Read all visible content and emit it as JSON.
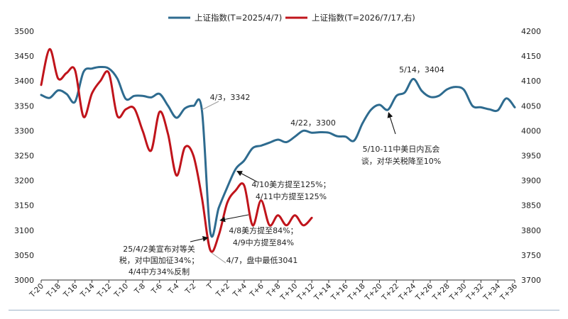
{
  "chart_data": {
    "type": "line",
    "series": [
      {
        "name": "上证指数(T=2025/4/7)",
        "axis": "left",
        "color": "#2e6b8f",
        "x": [
          -20,
          -19,
          -18,
          -17,
          -16,
          -15,
          -14,
          -13,
          -12,
          -11,
          -10,
          -9,
          -8,
          -7,
          -6,
          -5,
          -4,
          -3,
          -2,
          -1,
          0,
          1,
          2,
          3,
          4,
          5,
          6,
          7,
          8,
          9,
          10,
          11,
          12,
          13,
          14,
          15,
          16,
          17,
          18,
          19,
          20,
          21,
          22,
          23,
          24,
          25,
          26,
          27,
          28,
          29,
          30,
          31,
          32,
          33,
          34,
          35,
          36
        ],
        "values": [
          3372,
          3366,
          3381,
          3374,
          3358,
          3418,
          3425,
          3428,
          3425,
          3405,
          3364,
          3370,
          3370,
          3367,
          3374,
          3350,
          3326,
          3345,
          3350,
          3342,
          3096,
          3145,
          3186,
          3223,
          3240,
          3265,
          3270,
          3276,
          3282,
          3277,
          3288,
          3300,
          3296,
          3297,
          3296,
          3289,
          3288,
          3280,
          3315,
          3342,
          3352,
          3342,
          3370,
          3377,
          3404,
          3380,
          3368,
          3370,
          3383,
          3388,
          3382,
          3350,
          3347,
          3343,
          3341,
          3365,
          3347
        ]
      },
      {
        "name": "上证指数(T=2026/7/17,右)",
        "axis": "right",
        "color": "#c0141b",
        "x": [
          -20,
          -19,
          -18,
          -17,
          -16,
          -15,
          -14,
          -13,
          -12,
          -11,
          -10,
          -9,
          -8,
          -7,
          -6,
          -5,
          -4,
          -3,
          -2,
          -1,
          0,
          1,
          2,
          3,
          4,
          5,
          6,
          7,
          8,
          9,
          10,
          11,
          12
        ],
        "values": [
          4092,
          4164,
          4105,
          4116,
          4122,
          4028,
          4075,
          4100,
          4116,
          4030,
          4043,
          4045,
          4000,
          3960,
          4038,
          3993,
          3910,
          3967,
          3950,
          3866,
          3760,
          3790,
          3855,
          3880,
          3890,
          3810,
          3860,
          3810,
          3830,
          3810,
          3830,
          3810,
          3825
        ]
      }
    ],
    "left_ylim": [
      3000,
      3500
    ],
    "right_ylim": [
      3700,
      4200
    ],
    "left_ticks": [
      "3000",
      "3050",
      "3100",
      "3150",
      "3200",
      "3250",
      "3300",
      "3350",
      "3400",
      "3450",
      "3500"
    ],
    "right_ticks": [
      "3700",
      "3750",
      "3800",
      "3850",
      "3900",
      "3950",
      "4000",
      "4050",
      "4100",
      "4150",
      "4200"
    ],
    "xlim": [
      -20,
      36
    ],
    "x_tick_labels": [
      "T-20",
      "T-18",
      "T-16",
      "T-14",
      "T-12",
      "T-10",
      "T-8",
      "T-6",
      "T-4",
      "T-2",
      "T",
      "T+2",
      "T+4",
      "T+6",
      "T+8",
      "T+10",
      "T+12",
      "T+14",
      "T+16",
      "T+18",
      "T+20",
      "T+22",
      "T+24",
      "T+26",
      "T+28",
      "T+30",
      "T+32",
      "T+34",
      "T+36"
    ],
    "x_tick_values": [
      -20,
      -18,
      -16,
      -14,
      -12,
      -10,
      -8,
      -6,
      -4,
      -2,
      0,
      2,
      4,
      6,
      8,
      10,
      12,
      14,
      16,
      18,
      20,
      22,
      24,
      26,
      28,
      30,
      32,
      34,
      36
    ],
    "legend_position": "top",
    "grid": false,
    "annotations": [
      {
        "lines": [
          "4/3，3342"
        ],
        "x": -1,
        "y": 3342,
        "style": "leader"
      },
      {
        "lines": [
          "4/22，3300"
        ],
        "x": 11,
        "y": 3300,
        "style": "none"
      },
      {
        "lines": [
          "5/14，3404"
        ],
        "x": 24,
        "y": 3404,
        "style": "none"
      },
      {
        "lines": [
          "5/10-11中美日内瓦会",
          "谈，对华关税降至10%"
        ],
        "x": 21,
        "y": 3342,
        "style": "arrow"
      },
      {
        "lines": [
          "4/10美方提至125%；",
          "4/11中方提至125%"
        ],
        "x": 3,
        "y": 3223,
        "style": "arrow"
      },
      {
        "lines": [
          "4/8美方提至84%；",
          "4/9中方提至84%"
        ],
        "x": 1,
        "y": 3120,
        "style": "arrow"
      },
      {
        "lines": [
          "25/4/2美宣布对等关",
          "税，对中国加征34%；",
          "4/4中方34%反制"
        ],
        "x": -0.3,
        "y": 3085,
        "style": "arrow"
      },
      {
        "lines": [
          "4/7，盘中最低3041"
        ],
        "x": 0,
        "y": 3041,
        "style": "leader"
      }
    ]
  }
}
